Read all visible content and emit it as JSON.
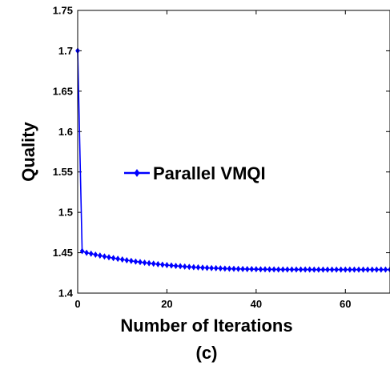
{
  "chart_data": {
    "type": "line",
    "title": "",
    "subtitle": "(c)",
    "xlabel": "Number of Iterations",
    "ylabel": "Quality",
    "xlim": [
      0,
      70
    ],
    "ylim": [
      1.4,
      1.75
    ],
    "xticks": [
      0,
      20,
      40,
      60
    ],
    "xtick_labels": [
      "0",
      "20",
      "40",
      "60"
    ],
    "yticks": [
      1.4,
      1.45,
      1.5,
      1.55,
      1.6,
      1.65,
      1.7,
      1.75
    ],
    "ytick_labels": [
      "1.4",
      "1.45",
      "1.5",
      "1.55",
      "1.6",
      "1.65",
      "1.7",
      "1.75"
    ],
    "grid": false,
    "legend_position": "center",
    "series": [
      {
        "name": "Parallel VMQI",
        "color": "#0000ff",
        "marker": "diamond",
        "x": [
          0,
          1,
          2,
          3,
          4,
          5,
          6,
          7,
          8,
          9,
          10,
          11,
          12,
          13,
          14,
          15,
          16,
          17,
          18,
          19,
          20,
          21,
          22,
          23,
          24,
          25,
          26,
          27,
          28,
          29,
          30,
          31,
          32,
          33,
          34,
          35,
          36,
          37,
          38,
          39,
          40,
          41,
          42,
          43,
          44,
          45,
          46,
          47,
          48,
          49,
          50,
          51,
          52,
          53,
          54,
          55,
          56,
          57,
          58,
          59,
          60,
          61,
          62,
          63,
          64,
          65,
          66,
          67,
          68,
          69,
          70
        ],
        "y": [
          1.7,
          1.452,
          1.45,
          1.4488,
          1.4476,
          1.4465,
          1.4454,
          1.4444,
          1.4434,
          1.4425,
          1.4416,
          1.4407,
          1.4399,
          1.4391,
          1.4384,
          1.4377,
          1.437,
          1.4364,
          1.4358,
          1.4352,
          1.4347,
          1.4342,
          1.4337,
          1.4333,
          1.4329,
          1.4325,
          1.4321,
          1.4318,
          1.4315,
          1.4312,
          1.431,
          1.4308,
          1.4306,
          1.4304,
          1.4302,
          1.4301,
          1.43,
          1.4299,
          1.4298,
          1.4297,
          1.4296,
          1.4295,
          1.4295,
          1.4294,
          1.4294,
          1.4293,
          1.4293,
          1.4293,
          1.4292,
          1.4292,
          1.4292,
          1.4292,
          1.4292,
          1.4291,
          1.4291,
          1.4291,
          1.4291,
          1.4291,
          1.4291,
          1.4291,
          1.4291,
          1.4291,
          1.4291,
          1.4291,
          1.4291,
          1.4291,
          1.4291,
          1.4291,
          1.4291,
          1.4291,
          1.4291
        ]
      }
    ]
  }
}
